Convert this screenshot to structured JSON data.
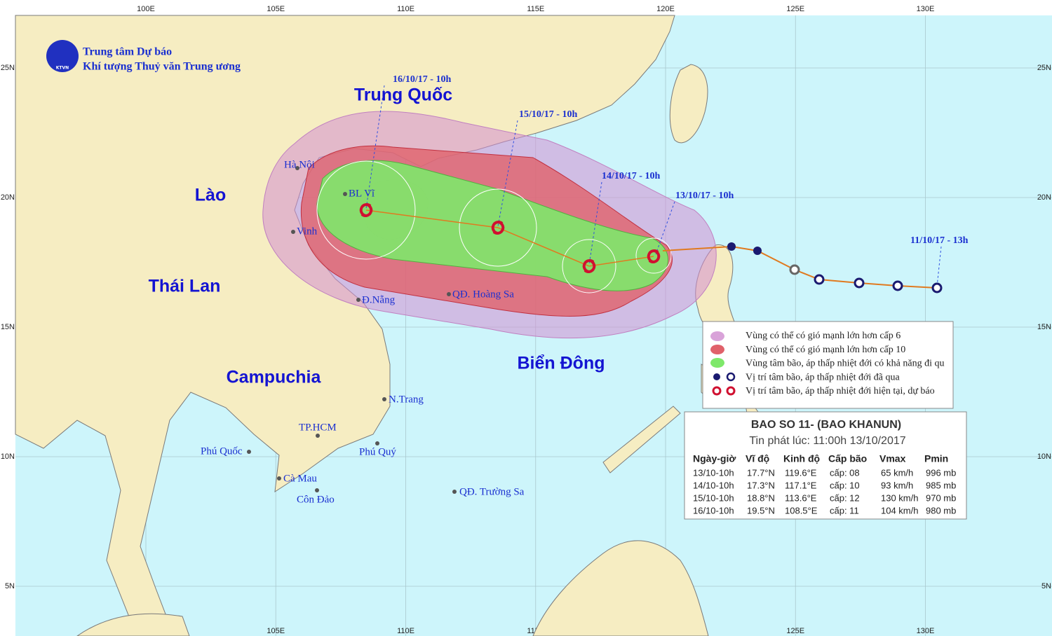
{
  "header": {
    "org_line1": "Trung tâm Dự báo",
    "org_line2": "Khí tượng Thuỷ văn Trung ương",
    "logo_text": "KTVN"
  },
  "map": {
    "lon_ticks": [
      {
        "value": 100,
        "label": "100E"
      },
      {
        "value": 105,
        "label": "105E"
      },
      {
        "value": 110,
        "label": "110E"
      },
      {
        "value": 115,
        "label": "115E"
      },
      {
        "value": 120,
        "label": "120E"
      },
      {
        "value": 125,
        "label": "125E"
      },
      {
        "value": 130,
        "label": "130E"
      }
    ],
    "lat_ticks": [
      {
        "value": 25,
        "label": "25N"
      },
      {
        "value": 20,
        "label": "20N"
      },
      {
        "value": 15,
        "label": "15N"
      },
      {
        "value": 10,
        "label": "10N"
      },
      {
        "value": 5,
        "label": "5N"
      }
    ]
  },
  "countries": [
    "Trung Quốc",
    "Lào",
    "Thái Lan",
    "Campuchia",
    "Biển Đông"
  ],
  "places": [
    "Hà Nội",
    "BL Vĩ",
    "Vinh",
    "Đ.Nẵng",
    "QĐ. Hoàng Sa",
    "N.Trang",
    "TP.HCM",
    "Phú Quốc",
    "Phú Quý",
    "Cà Mau",
    "Côn Đảo",
    "QĐ. Trường Sa"
  ],
  "track_times": [
    "16/10/17 - 10h",
    "15/10/17 - 10h",
    "14/10/17 - 10h",
    "13/10/17 - 10h",
    "11/10/17 - 13h"
  ],
  "legend": [
    "Vùng có thể có gió mạnh lớn hơn cấp 6",
    "Vùng có thể có gió mạnh lớn hơn cấp 10",
    "Vùng tâm bão, áp thấp nhiệt đới có khả năng đi qu",
    "Vị trí tâm bão, áp thấp nhiệt đới đã qua",
    "Vị trí tâm bão, áp thấp nhiệt đới hiện tại, dự báo"
  ],
  "bulletin": {
    "title": "BAO SO 11- (BAO KHANUN)",
    "issued": "Tin phát lúc: 11:00h 13/10/2017",
    "columns": [
      "Ngày-giờ",
      "Vĩ độ",
      "Kinh độ",
      "Cấp bão",
      "Vmax",
      "Pmin"
    ],
    "rows": [
      [
        "13/10-10h",
        "17.7°N",
        "119.6°E",
        "cấp: 08",
        "65 km/h",
        "996 mb"
      ],
      [
        "14/10-10h",
        "17.3°N",
        "117.1°E",
        "cấp: 10",
        "93 km/h",
        "985 mb"
      ],
      [
        "15/10-10h",
        "18.8°N",
        "113.6°E",
        "cấp: 12",
        "130 km/h",
        "970 mb"
      ],
      [
        "16/10-10h",
        "19.5°N",
        "108.5°E",
        "cấp: 11",
        "104 km/h",
        "980 mb"
      ]
    ]
  }
}
